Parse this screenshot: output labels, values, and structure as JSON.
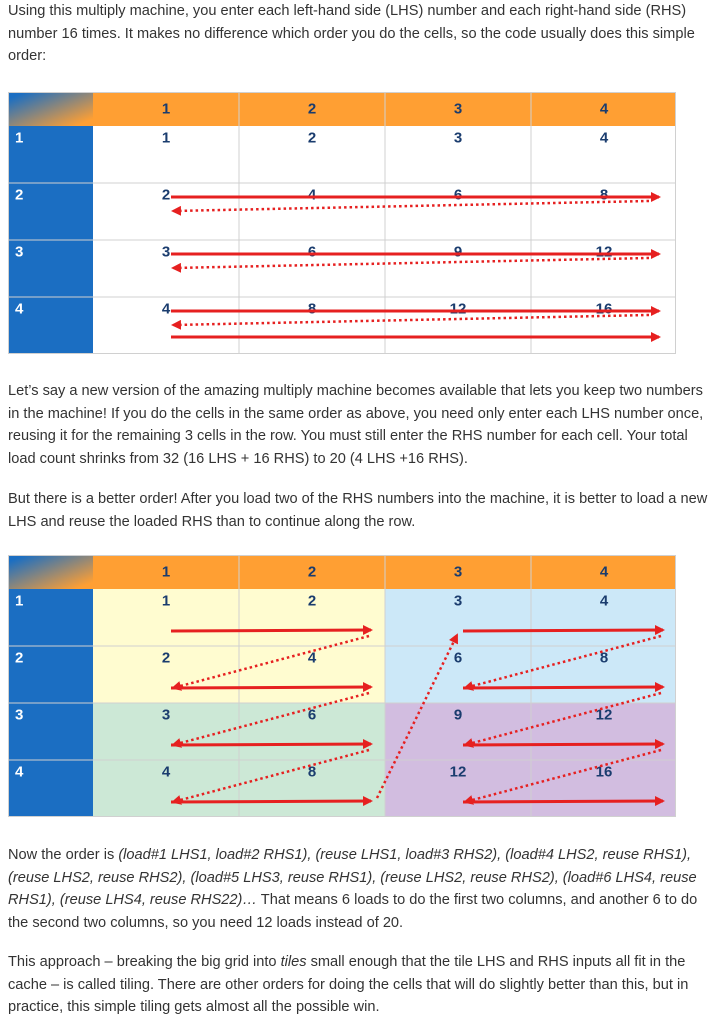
{
  "paragraphs": {
    "p1": "Using this multiply machine, you enter each left-hand side (LHS) number and each right-hand side (RHS) number 16 times. It makes no difference which order you do the cells, so the code usually does this simple order:",
    "p2": "Let’s say a new version of the amazing multiply machine becomes available that lets you keep two numbers in the machine! If you do the cells in the same order as above, you need only enter each LHS number once, reusing it for the remaining 3 cells in the row. You must still enter the RHS number for each cell. Your total load count shrinks from 32 (16 LHS + 16 RHS) to 20 (4 LHS +16 RHS).",
    "p3": "But there is a better order! After you load two of the RHS numbers into the machine, it is better to load a new LHS and reuse the loaded RHS than to continue along the row.",
    "p4_prefix": "Now the order is ",
    "p4_italic": "(load#1 LHS1, load#2 RHS1), (reuse LHS1, load#3 RHS2), (load#4 LHS2, reuse RHS1), (reuse LHS2, reuse RHS2), (load#5 LHS3, reuse RHS1), (reuse LHS2, reuse RHS2), (load#6 LHS4, reuse RHS1), (reuse LHS4, reuse RHS22)…",
    "p4_suffix": " That means 6 loads to do the first two columns, and another 6 to do the second two columns, so you need 12 loads instead of 20.",
    "p5_a": "This approach – breaking the big grid into ",
    "p5_italic": "tiles",
    "p5_b": " small enough that the tile LHS and RHS inputs all fit in the cache – is called tiling. There are other orders for doing the cells that will do slightly better than this, but in practice, this simple tiling gets almost all the possible win."
  },
  "grid": {
    "column_headers": [
      "1",
      "2",
      "3",
      "4"
    ],
    "row_headers": [
      "1",
      "2",
      "3",
      "4"
    ],
    "cells": [
      [
        "1",
        "2",
        "3",
        "4"
      ],
      [
        "2",
        "4",
        "6",
        "8"
      ],
      [
        "3",
        "6",
        "9",
        "12"
      ],
      [
        "4",
        "8",
        "12",
        "16"
      ]
    ]
  },
  "colors": {
    "header_orange": "#FF9F33",
    "row_blue": "#1B6EC2",
    "number_blue": "#1A3C6E",
    "arrow_red": "#E62020",
    "tile_yellow": "#FFFCD0",
    "tile_blue": "#CCE8F8",
    "tile_green": "#CCE8D6",
    "tile_purple": "#D2BDE0"
  }
}
